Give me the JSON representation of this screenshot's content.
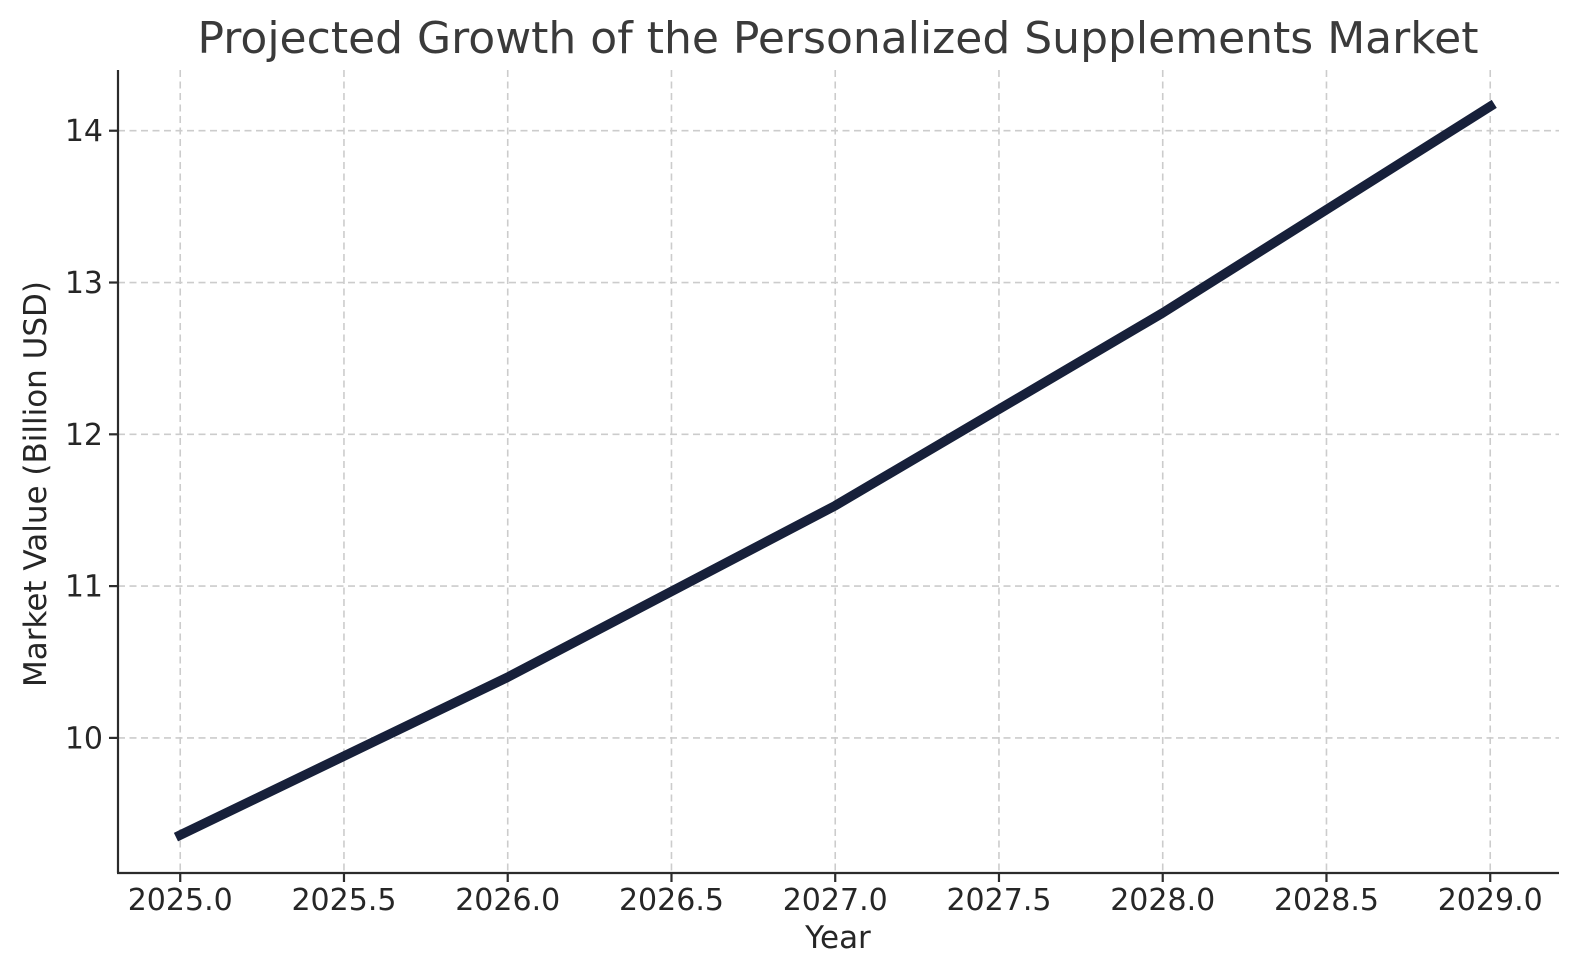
{
  "chart_data": {
    "type": "line",
    "title": "Projected Growth of the Personalized Supplements Market",
    "xlabel": "Year",
    "ylabel": "Market Value (Billion USD)",
    "series": [
      {
        "name": "Market Value (Billion USD)",
        "x": [
          2025,
          2026,
          2027,
          2028,
          2029
        ],
        "values": [
          9.36,
          10.4,
          11.53,
          12.8,
          14.16
        ]
      }
    ],
    "xlim": [
      2024.81,
      2029.21
    ],
    "ylim": [
      9.11,
      14.4
    ],
    "xticks": [
      2025.0,
      2025.5,
      2026.0,
      2026.5,
      2027.0,
      2027.5,
      2028.0,
      2028.5,
      2029.0
    ],
    "xtick_labels": [
      "2025.0",
      "2025.5",
      "2026.0",
      "2026.5",
      "2027.0",
      "2027.5",
      "2028.0",
      "2028.5",
      "2029.0"
    ],
    "yticks": [
      10,
      11,
      12,
      13,
      14
    ],
    "ytick_labels": [
      "10",
      "11",
      "12",
      "13",
      "14"
    ],
    "grid": true,
    "grid_style": "dashed",
    "legend_position": "none",
    "spines": [
      "left",
      "bottom"
    ]
  },
  "colors": {
    "line": "#17203a",
    "grid": "#cccccc",
    "spine": "#2b2b2b",
    "tick_label": "#262626",
    "title": "#3a3a3a",
    "axis_label": "#262626",
    "background": "#ffffff"
  }
}
